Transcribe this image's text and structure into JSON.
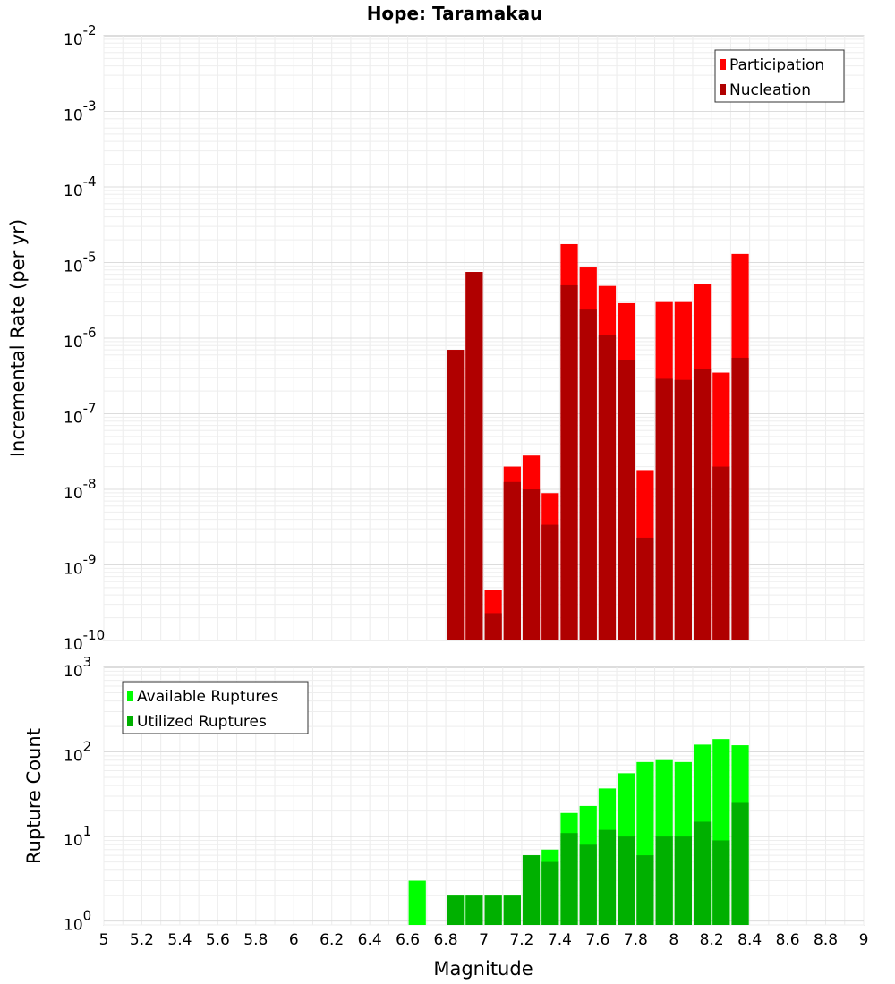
{
  "chart_data": [
    {
      "type": "bar",
      "title": "Hope: Taramakau",
      "xlabel": "Magnitude",
      "ylabel": "Incremental Rate (per yr)",
      "yscale": "log",
      "xlim": [
        5,
        9
      ],
      "ylim": [
        1e-10,
        0.01
      ],
      "ytick_exponents": [
        -10,
        -9,
        -8,
        -7,
        -6,
        -5,
        -4,
        -3,
        -2
      ],
      "legend_position": "top-right",
      "bin_width": 0.1,
      "x": [
        6.85,
        6.95,
        7.05,
        7.15,
        7.25,
        7.35,
        7.45,
        7.55,
        7.65,
        7.75,
        7.85,
        7.95,
        8.05,
        8.15,
        8.25,
        8.35
      ],
      "series": [
        {
          "name": "Participation",
          "color": "#ff0000",
          "values": [
            7e-07,
            7.5e-06,
            4.7e-10,
            2e-08,
            2.8e-08,
            8.9e-09,
            1.75e-05,
            8.6e-06,
            4.9e-06,
            2.9e-06,
            1.8e-08,
            3e-06,
            3e-06,
            5.2e-06,
            3.5e-07,
            1.3e-05
          ]
        },
        {
          "name": "Nucleation",
          "color": "#b00000",
          "values": [
            7e-07,
            7.5e-06,
            2.3e-10,
            1.25e-08,
            1e-08,
            3.4e-09,
            5e-06,
            2.45e-06,
            1.1e-06,
            5.2e-07,
            2.3e-09,
            2.9e-07,
            2.8e-07,
            3.9e-07,
            2e-08,
            5.5e-07
          ]
        }
      ]
    },
    {
      "type": "bar",
      "xlabel": "Magnitude",
      "ylabel": "Rupture Count",
      "yscale": "log",
      "xlim": [
        5,
        9
      ],
      "ylim": [
        0.9,
        1000
      ],
      "ytick_exponents": [
        0,
        1,
        2,
        3
      ],
      "xticks": [
        "5",
        "5.2",
        "5.4",
        "5.6",
        "5.8",
        "6",
        "6.2",
        "6.4",
        "6.6",
        "6.8",
        "7",
        "7.2",
        "7.4",
        "7.6",
        "7.8",
        "8",
        "8.2",
        "8.4",
        "8.6",
        "8.8",
        "9"
      ],
      "legend_position": "top-left",
      "bin_width": 0.1,
      "x": [
        6.65,
        6.85,
        6.95,
        7.05,
        7.15,
        7.25,
        7.35,
        7.45,
        7.55,
        7.65,
        7.75,
        7.85,
        7.95,
        8.05,
        8.15,
        8.25,
        8.35
      ],
      "series": [
        {
          "name": "Available Ruptures",
          "color": "#00ff00",
          "values": [
            3,
            2,
            2,
            2,
            2,
            6,
            7,
            19,
            23,
            37,
            56,
            76,
            80,
            76,
            122,
            142,
            120
          ]
        },
        {
          "name": "Utilized Ruptures",
          "color": "#00b000",
          "values": [
            0,
            2,
            2,
            2,
            2,
            6,
            5,
            11,
            8,
            12,
            10,
            6,
            10,
            10,
            15,
            9,
            25
          ]
        }
      ]
    }
  ]
}
